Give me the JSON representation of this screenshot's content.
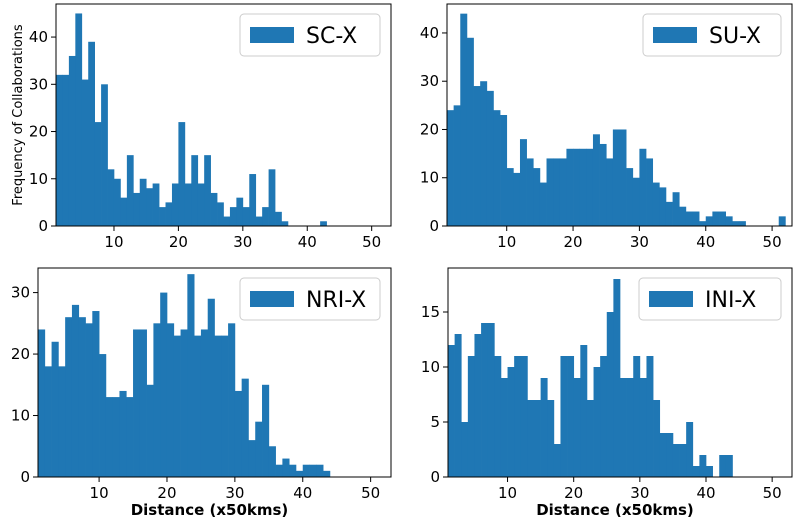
{
  "chart_data": [
    {
      "type": "bar",
      "legend": "SC-X",
      "legend_position": "top-right",
      "ylabel": "Frequency of Collaborations",
      "xlabel": "",
      "xlim": [
        1,
        53
      ],
      "ylim": [
        0,
        47
      ],
      "xticks": [
        10,
        20,
        30,
        40,
        50
      ],
      "yticks": [
        0,
        10,
        20,
        30,
        40
      ],
      "bin_start": 1,
      "bin_width": 1,
      "color": "#1f77b4",
      "values": [
        32,
        32,
        36,
        45,
        31,
        39,
        22,
        30,
        12,
        10,
        6,
        15,
        7,
        10,
        8,
        9,
        4,
        5,
        9,
        22,
        9,
        15,
        9,
        15,
        7,
        5,
        2,
        4,
        6,
        4,
        11,
        2,
        4,
        12,
        3,
        1,
        0,
        0,
        0,
        0,
        0,
        1,
        0,
        0,
        0,
        0,
        0,
        0,
        0,
        0,
        0,
        0
      ]
    },
    {
      "type": "bar",
      "legend": "SU-X",
      "legend_position": "top-right",
      "ylabel": "",
      "xlabel": "",
      "xlim": [
        1,
        53
      ],
      "ylim": [
        0,
        46
      ],
      "xticks": [
        10,
        20,
        30,
        40,
        50
      ],
      "yticks": [
        0,
        10,
        20,
        30,
        40
      ],
      "bin_start": 1,
      "bin_width": 1,
      "color": "#1f77b4",
      "values": [
        24,
        25,
        44,
        39,
        29,
        30,
        28,
        24,
        23,
        12,
        11,
        18,
        14,
        12,
        9,
        14,
        14,
        14,
        16,
        16,
        16,
        16,
        19,
        17,
        14,
        20,
        20,
        12,
        10,
        16,
        14,
        9,
        8,
        5,
        7,
        4,
        3,
        3,
        1,
        2,
        3,
        3,
        2,
        1,
        1,
        0,
        0,
        0,
        0,
        0,
        2,
        0
      ]
    },
    {
      "type": "bar",
      "legend": "NRI-X",
      "legend_position": "top-right",
      "ylabel": "",
      "xlabel": "Distance (x50kms)",
      "xlim": [
        1,
        53
      ],
      "ylim": [
        0,
        34
      ],
      "xticks": [
        10,
        20,
        30,
        40,
        50
      ],
      "yticks": [
        0,
        10,
        20,
        30
      ],
      "bin_start": 1,
      "bin_width": 1,
      "color": "#1f77b4",
      "values": [
        24,
        18,
        22,
        18,
        26,
        28,
        26,
        25,
        27,
        20,
        13,
        13,
        14,
        13,
        24,
        24,
        15,
        25,
        30,
        25,
        23,
        24,
        33,
        23,
        24,
        29,
        23,
        23,
        25,
        14,
        16,
        6,
        9,
        15,
        5,
        2,
        3,
        2,
        1,
        2,
        2,
        2,
        1,
        0,
        0,
        0,
        0,
        0,
        0,
        0,
        0,
        0
      ]
    },
    {
      "type": "bar",
      "legend": "INI-X",
      "legend_position": "top-right",
      "ylabel": "",
      "xlabel": "Distance (x50kms)",
      "xlim": [
        1,
        53
      ],
      "ylim": [
        0,
        19
      ],
      "xticks": [
        10,
        20,
        30,
        40,
        50
      ],
      "yticks": [
        0,
        5,
        10,
        15
      ],
      "bin_start": 1,
      "bin_width": 1,
      "color": "#1f77b4",
      "values": [
        12,
        13,
        5,
        11,
        13,
        14,
        14,
        11,
        9,
        10,
        11,
        11,
        7,
        7,
        9,
        7,
        3,
        11,
        11,
        9,
        12,
        7,
        10,
        11,
        15,
        18,
        9,
        9,
        11,
        9,
        11,
        7,
        4,
        4,
        3,
        3,
        5,
        1,
        2,
        1,
        0,
        2,
        2,
        0,
        0,
        0,
        0,
        0,
        0,
        0,
        0,
        0
      ]
    }
  ]
}
